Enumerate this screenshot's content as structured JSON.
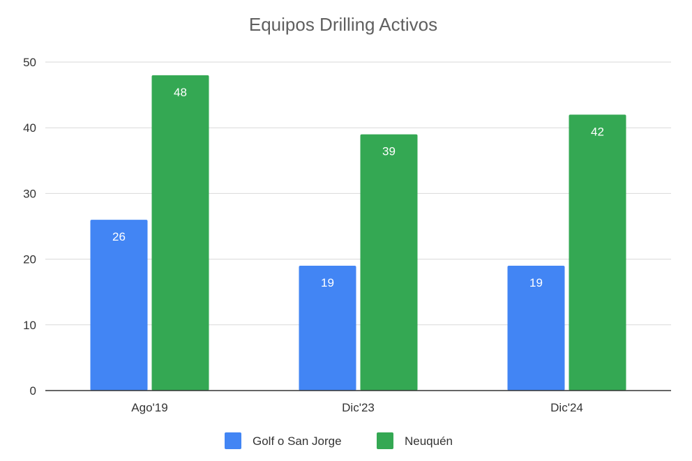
{
  "chart_data": {
    "type": "bar",
    "title": "Equipos Drilling Activos",
    "xlabel": "",
    "ylabel": "",
    "categories": [
      "Ago'19",
      "Dic'23",
      "Dic'24"
    ],
    "series": [
      {
        "name": "Golf o San Jorge",
        "color": "#4285f4",
        "values": [
          26,
          19,
          19
        ]
      },
      {
        "name": "Neuquén",
        "color": "#34a853",
        "values": [
          48,
          39,
          42
        ]
      }
    ],
    "ylim": [
      0,
      50
    ],
    "yticks": [
      0,
      10,
      20,
      30,
      40,
      50
    ],
    "grid": true,
    "legend_position": "bottom",
    "data_labels": true
  }
}
